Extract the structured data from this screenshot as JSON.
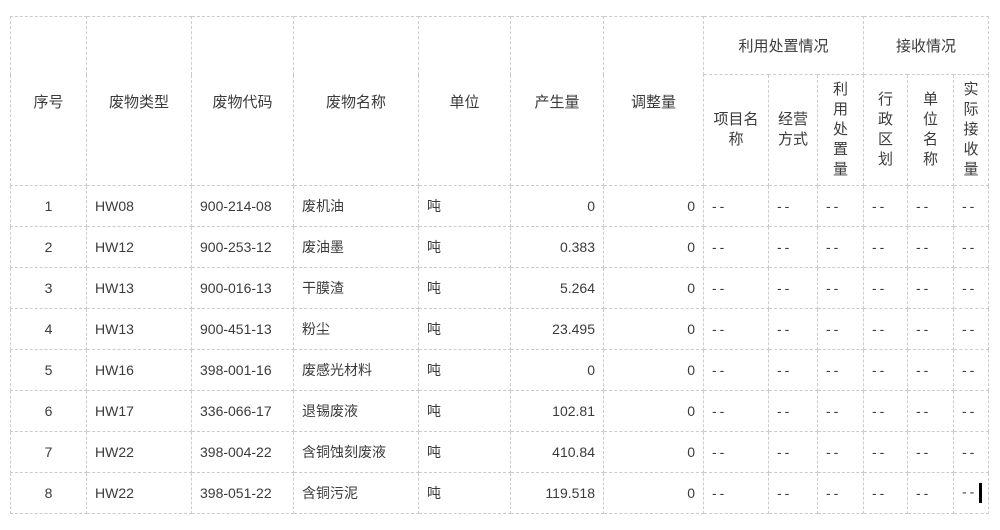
{
  "colors": {
    "text": "#3b3b3b",
    "border": "#cccccc",
    "cursor": "#000000",
    "background": "#ffffff"
  },
  "header": {
    "serial": "序号",
    "waste_type": "废物类型",
    "waste_code": "废物代码",
    "waste_name": "废物名称",
    "unit": "单位",
    "produced": "产生量",
    "adjusted": "调整量",
    "disposal_group": "利用处置情况",
    "receive_group": "接收情况",
    "project_name": "项目名\n称",
    "operation_mode": "经营\n方式",
    "disposal_amount": "利\n用\n处\n置\n量",
    "admin_region": "行\n政\n区\n划",
    "unit_name": "单\n位\n名\n称",
    "actual_received": "实\n际\n接\n收\n量"
  },
  "rows": [
    {
      "no": "1",
      "type": "HW08",
      "code": "900-214-08",
      "name": "废机油",
      "unit": "吨",
      "produced": "0",
      "adjusted": "0",
      "project": "--",
      "mode": "--",
      "disposal": "--",
      "region": "--",
      "org": "--",
      "received": "--"
    },
    {
      "no": "2",
      "type": "HW12",
      "code": "900-253-12",
      "name": "废油墨",
      "unit": "吨",
      "produced": "0.383",
      "adjusted": "0",
      "project": "--",
      "mode": "--",
      "disposal": "--",
      "region": "--",
      "org": "--",
      "received": "--"
    },
    {
      "no": "3",
      "type": "HW13",
      "code": "900-016-13",
      "name": "干膜渣",
      "unit": "吨",
      "produced": "5.264",
      "adjusted": "0",
      "project": "--",
      "mode": "--",
      "disposal": "--",
      "region": "--",
      "org": "--",
      "received": "--"
    },
    {
      "no": "4",
      "type": "HW13",
      "code": "900-451-13",
      "name": "粉尘",
      "unit": "吨",
      "produced": "23.495",
      "adjusted": "0",
      "project": "--",
      "mode": "--",
      "disposal": "--",
      "region": "--",
      "org": "--",
      "received": "--"
    },
    {
      "no": "5",
      "type": "HW16",
      "code": "398-001-16",
      "name": "废感光材料",
      "unit": "吨",
      "produced": "0",
      "adjusted": "0",
      "project": "--",
      "mode": "--",
      "disposal": "--",
      "region": "--",
      "org": "--",
      "received": "--"
    },
    {
      "no": "6",
      "type": "HW17",
      "code": "336-066-17",
      "name": "退锡废液",
      "unit": "吨",
      "produced": "102.81",
      "adjusted": "0",
      "project": "--",
      "mode": "--",
      "disposal": "--",
      "region": "--",
      "org": "--",
      "received": "--"
    },
    {
      "no": "7",
      "type": "HW22",
      "code": "398-004-22",
      "name": "含铜蚀刻废液",
      "unit": "吨",
      "produced": "410.84",
      "adjusted": "0",
      "project": "--",
      "mode": "--",
      "disposal": "--",
      "region": "--",
      "org": "--",
      "received": "--"
    },
    {
      "no": "8",
      "type": "HW22",
      "code": "398-051-22",
      "name": "含铜污泥",
      "unit": "吨",
      "produced": "119.518",
      "adjusted": "0",
      "project": "--",
      "mode": "--",
      "disposal": "--",
      "region": "--",
      "org": "--",
      "received": "--"
    }
  ],
  "cursor_in_last_cell": true
}
